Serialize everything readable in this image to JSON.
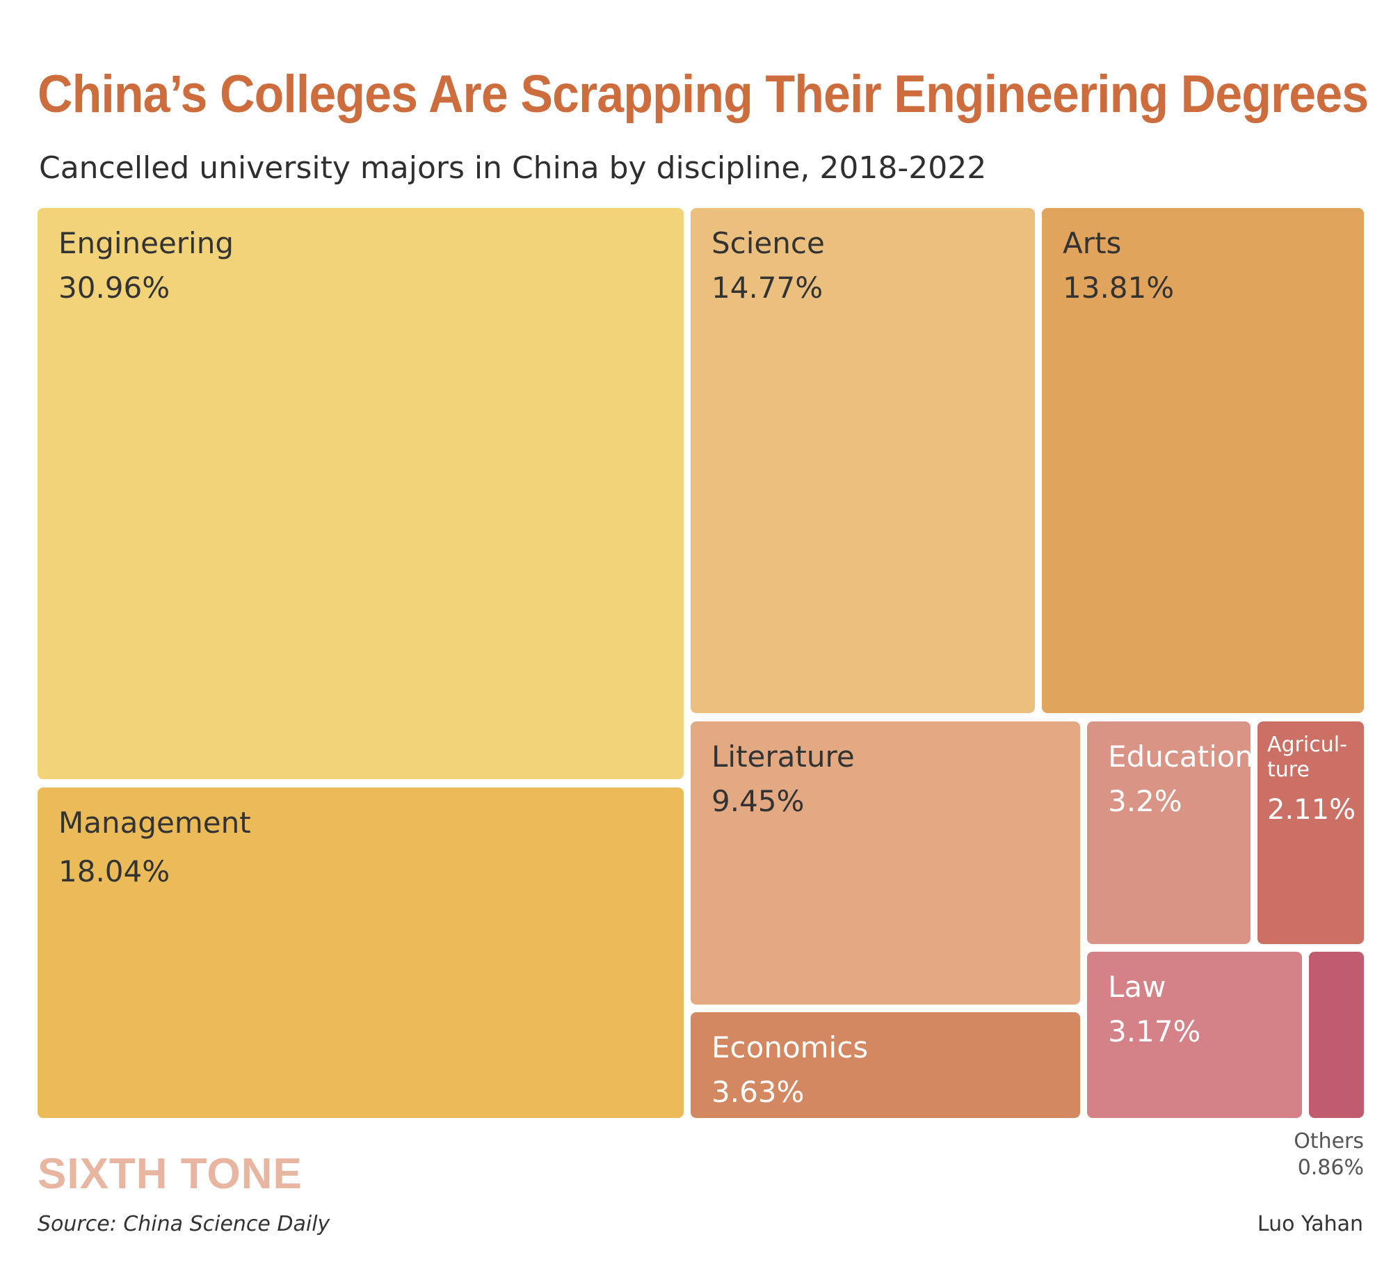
{
  "chart_data": {
    "type": "treemap",
    "title": "China’s Colleges Are Scrapping Their Engineering Degrees",
    "subtitle": "Cancelled university majors in China by discipline, 2018-2022",
    "unit": "%",
    "items": [
      {
        "id": "engineering",
        "label": "Engineering",
        "value": 30.96,
        "value_label": "30.96%",
        "color": "#f2d37a",
        "text_color": "#333333"
      },
      {
        "id": "management",
        "label": "Management",
        "value": 18.04,
        "value_label": "18.04%",
        "color": "#eabb58",
        "text_color": "#333333"
      },
      {
        "id": "science",
        "label": "Science",
        "value": 14.77,
        "value_label": "14.77%",
        "color": "#ebc07e",
        "text_color": "#333333"
      },
      {
        "id": "arts",
        "label": "Arts",
        "value": 13.81,
        "value_label": "13.81%",
        "color": "#e0a45c",
        "text_color": "#333333"
      },
      {
        "id": "literature",
        "label": "Literature",
        "value": 9.45,
        "value_label": "9.45%",
        "color": "#e3a983",
        "text_color": "#333333"
      },
      {
        "id": "economics",
        "label": "Economics",
        "value": 3.63,
        "value_label": "3.63%",
        "color": "#d48862",
        "text_color": "#ffffff"
      },
      {
        "id": "education",
        "label": "Education",
        "value": 3.2,
        "value_label": "3.2%",
        "color": "#d99485",
        "text_color": "#ffffff"
      },
      {
        "id": "agriculture",
        "label": "Agricul-\nture",
        "value": 2.11,
        "value_label": "2.11%",
        "color": "#cc7066",
        "text_color": "#ffffff"
      },
      {
        "id": "law",
        "label": "Law",
        "value": 3.17,
        "value_label": "3.17%",
        "color": "#d48188",
        "text_color": "#ffffff"
      },
      {
        "id": "others",
        "label": "Others",
        "value": 0.86,
        "value_label": "0.86%",
        "color": "#c15c6e",
        "text_color": "#555555"
      }
    ]
  },
  "branding": {
    "logo_text": "SIXTH TONE",
    "source": "Source:  China Science Daily",
    "credit": "Luo Yahan"
  }
}
